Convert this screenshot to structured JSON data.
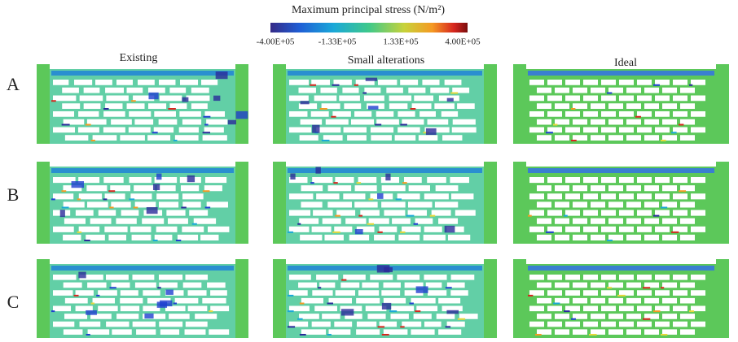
{
  "colorbar": {
    "title": "Maximum principal stress (N/m²)",
    "tick_labels": [
      "-4.00E+05",
      "-1.33E+05",
      "1.33E+05",
      "4.00E+05"
    ]
  },
  "columns": [
    "Existing",
    "Small alterations",
    "Ideal"
  ],
  "rows": [
    "A",
    "B",
    "C"
  ]
}
